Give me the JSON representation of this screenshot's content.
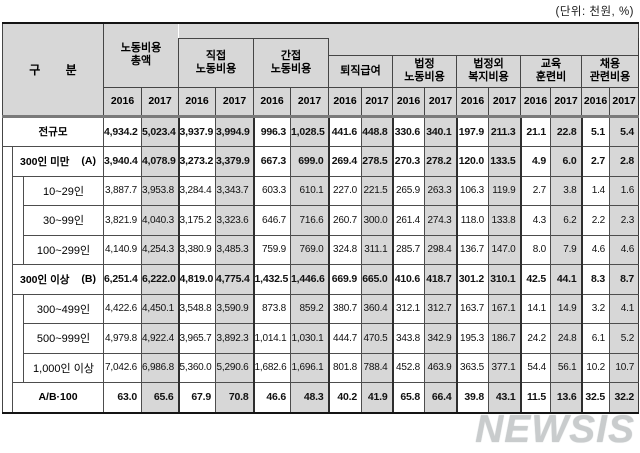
{
  "unit_note": "(단위: 천원, %)",
  "watermark": "NEWSIS",
  "colors": {
    "shade_fill": "#d7d7d7",
    "grid_line": "#4d4d4d",
    "watermark_gray": "#c9cccd"
  },
  "table": {
    "corner_label": "구 분",
    "years": [
      "2016",
      "2017"
    ],
    "col_groups": [
      {
        "id": "total",
        "label": "노동비용\n총액",
        "level": 1
      },
      {
        "id": "direct",
        "label": "직접\n노동비용",
        "level": 2
      },
      {
        "id": "indirect",
        "label": "간접\n노동비용",
        "level": 2
      },
      {
        "id": "severance",
        "label": "퇴직급여",
        "level": 3
      },
      {
        "id": "statutory",
        "label": "법정\n노동비용",
        "level": 3
      },
      {
        "id": "welfare",
        "label": "법정외\n복지비용",
        "level": 3
      },
      {
        "id": "training",
        "label": "교육\n훈련비",
        "level": 3
      },
      {
        "id": "recruiting",
        "label": "채용\n관련비용",
        "level": 3
      }
    ],
    "rows": [
      {
        "label": "전규모",
        "level": 0,
        "bold": true,
        "center": true,
        "values": [
          "4,934.2",
          "5,023.4",
          "3,937.9",
          "3,994.9",
          "996.3",
          "1,028.5",
          "441.6",
          "448.8",
          "330.6",
          "340.1",
          "197.9",
          "211.3",
          "21.1",
          "22.8",
          "5.1",
          "5.4"
        ]
      },
      {
        "label": "300인 미만",
        "marker": "(A)",
        "level": 1,
        "bold": true,
        "center": false,
        "values": [
          "3,940.4",
          "4,078.9",
          "3,273.2",
          "3,379.9",
          "667.3",
          "699.0",
          "269.4",
          "278.5",
          "270.3",
          "278.2",
          "120.0",
          "133.5",
          "4.9",
          "6.0",
          "2.7",
          "2.8"
        ]
      },
      {
        "label": "10~29인",
        "level": 2,
        "bold": false,
        "center": true,
        "values": [
          "3,887.7",
          "3,953.8",
          "3,284.4",
          "3,343.7",
          "603.3",
          "610.1",
          "227.0",
          "221.5",
          "265.9",
          "263.3",
          "106.3",
          "119.9",
          "2.7",
          "3.8",
          "1.4",
          "1.6"
        ]
      },
      {
        "label": "30~99인",
        "level": 2,
        "bold": false,
        "center": true,
        "values": [
          "3,821.9",
          "4,040.3",
          "3,175.2",
          "3,323.6",
          "646.7",
          "716.6",
          "260.7",
          "300.0",
          "261.4",
          "274.3",
          "118.0",
          "133.8",
          "4.3",
          "6.2",
          "2.2",
          "2.3"
        ]
      },
      {
        "label": "100~299인",
        "level": 2,
        "bold": false,
        "center": true,
        "values": [
          "4,140.9",
          "4,254.3",
          "3,380.9",
          "3,485.3",
          "759.9",
          "769.0",
          "324.8",
          "311.1",
          "285.7",
          "298.4",
          "136.7",
          "147.0",
          "8.0",
          "7.9",
          "4.6",
          "4.6"
        ]
      },
      {
        "label": "300인 이상",
        "marker": "(B)",
        "level": 1,
        "bold": true,
        "center": false,
        "values": [
          "6,251.4",
          "6,222.0",
          "4,819.0",
          "4,775.4",
          "1,432.5",
          "1,446.6",
          "669.9",
          "665.0",
          "410.6",
          "418.7",
          "301.2",
          "310.1",
          "42.5",
          "44.1",
          "8.3",
          "8.7"
        ]
      },
      {
        "label": "300~499인",
        "level": 2,
        "bold": false,
        "center": true,
        "values": [
          "4,422.6",
          "4,450.1",
          "3,548.8",
          "3,590.9",
          "873.8",
          "859.2",
          "380.7",
          "360.4",
          "312.1",
          "312.7",
          "163.7",
          "167.1",
          "14.1",
          "14.9",
          "3.2",
          "4.1"
        ]
      },
      {
        "label": "500~999인",
        "level": 2,
        "bold": false,
        "center": true,
        "values": [
          "4,979.8",
          "4,922.4",
          "3,965.7",
          "3,892.3",
          "1,014.1",
          "1,030.1",
          "444.7",
          "470.5",
          "343.8",
          "342.9",
          "195.3",
          "186.7",
          "24.2",
          "24.8",
          "6.1",
          "5.2"
        ]
      },
      {
        "label": "1,000인 이상",
        "level": 2,
        "bold": false,
        "center": true,
        "values": [
          "7,042.6",
          "6,986.8",
          "5,360.0",
          "5,290.6",
          "1,682.6",
          "1,696.1",
          "801.8",
          "788.4",
          "452.8",
          "463.9",
          "363.5",
          "377.1",
          "54.4",
          "56.1",
          "10.2",
          "10.7"
        ]
      },
      {
        "label": "A/B·100",
        "level": 1,
        "bold": true,
        "center": true,
        "values": [
          "63.0",
          "65.6",
          "67.9",
          "70.8",
          "46.6",
          "48.3",
          "40.2",
          "41.9",
          "65.8",
          "66.4",
          "39.8",
          "43.1",
          "11.5",
          "13.6",
          "32.5",
          "32.2"
        ]
      }
    ]
  }
}
